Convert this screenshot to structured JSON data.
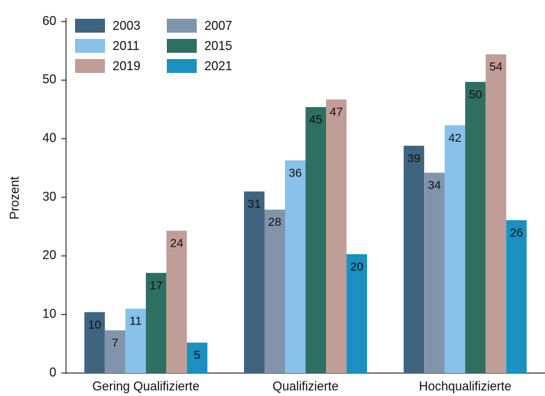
{
  "chart_data": {
    "type": "bar",
    "categories": [
      "Gering Qualifizierte",
      "Qualifizierte",
      "Hochqualifizierte"
    ],
    "ylabel": "Prozent",
    "ylim": [
      0,
      60
    ],
    "yticks": [
      0,
      10,
      20,
      30,
      40,
      50,
      60
    ],
    "legend": "upper left",
    "series": [
      {
        "name": "2003",
        "color": "#3e6480",
        "values": [
          10.4,
          31.0,
          38.8
        ],
        "value_labels": [
          "10",
          "31",
          "39"
        ]
      },
      {
        "name": "2007",
        "color": "#8094ac",
        "values": [
          7.3,
          27.9,
          34.2
        ],
        "value_labels": [
          "7",
          "28",
          "34"
        ]
      },
      {
        "name": "2011",
        "color": "#88c1ea",
        "values": [
          11.0,
          36.3,
          42.3
        ],
        "value_labels": [
          "11",
          "36",
          "42"
        ]
      },
      {
        "name": "2015",
        "color": "#2e6f61",
        "values": [
          17.1,
          45.4,
          49.7
        ],
        "value_labels": [
          "17",
          "45",
          "50"
        ]
      },
      {
        "name": "2019",
        "color": "#c09e97",
        "values": [
          24.3,
          46.7,
          54.4
        ],
        "value_labels": [
          "24",
          "47",
          "54"
        ]
      },
      {
        "name": "2021",
        "color": "#1a90c2",
        "values": [
          5.2,
          20.3,
          26.1
        ],
        "value_labels": [
          "5",
          "20",
          "26"
        ]
      }
    ]
  }
}
